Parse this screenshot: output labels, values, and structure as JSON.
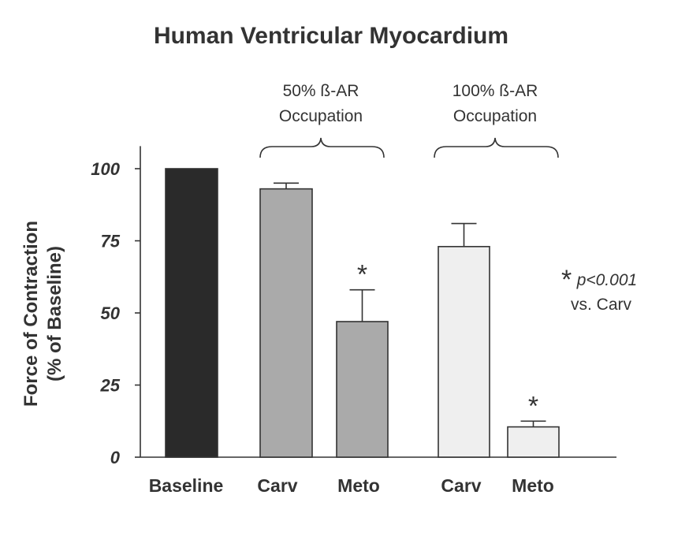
{
  "chart_data": {
    "type": "bar",
    "title": "Human Ventricular Myocardium",
    "ylabel_line1": "Force of Contraction",
    "ylabel_line2": "(% of Baseline)",
    "ylim": [
      0,
      110
    ],
    "yticks": [
      "0",
      "25",
      "50",
      "75",
      "100"
    ],
    "ytick_values": [
      0,
      25,
      50,
      75,
      100
    ],
    "grid": false,
    "bars": [
      {
        "label": "Baseline",
        "value": 100,
        "error": 0,
        "color": "#2a2a2a",
        "star": ""
      },
      {
        "label": "Carv",
        "value": 93,
        "error": 2,
        "color": "#aaaaaa",
        "star": ""
      },
      {
        "label": "Meto",
        "value": 47,
        "error": 11,
        "color": "#aaaaaa",
        "star": "*"
      },
      {
        "label": "Carv",
        "value": 73,
        "error": 8,
        "color": "#efefef",
        "star": ""
      },
      {
        "label": "Meto",
        "value": 10.5,
        "error": 2,
        "color": "#efefef",
        "star": "*"
      }
    ],
    "groups": [
      {
        "line1": "50% ß-AR",
        "line2": "Occupation"
      },
      {
        "line1": "100% ß-AR",
        "line2": "Occupation"
      }
    ],
    "annotation": {
      "star": "*",
      "p": "p<0.001",
      "line2": "vs. Carv"
    }
  }
}
